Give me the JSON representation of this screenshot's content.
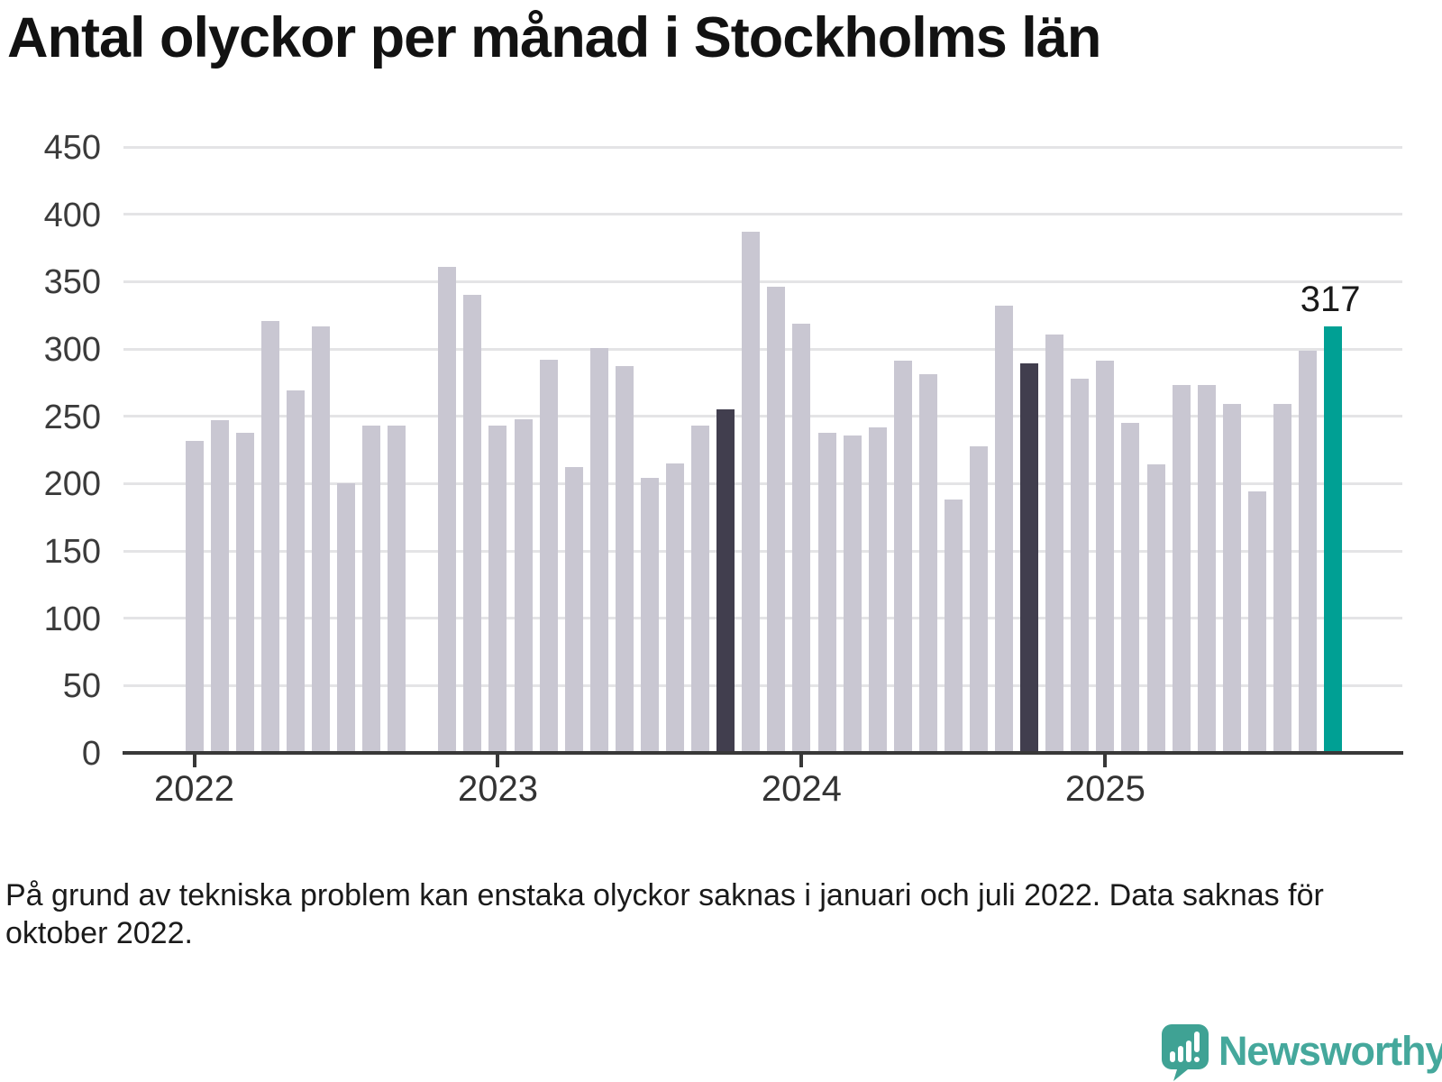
{
  "chart_data": {
    "type": "bar",
    "title": "Antal olyckor per månad i Stockholms län",
    "xlabel": "",
    "ylabel": "",
    "ylim": [
      0,
      450
    ],
    "grid": true,
    "legend": null,
    "yticks": [
      0,
      50,
      100,
      150,
      200,
      250,
      300,
      350,
      400,
      450
    ],
    "xticks": [
      {
        "label": "2022",
        "slot": 0
      },
      {
        "label": "2023",
        "slot": 12
      },
      {
        "label": "2024",
        "slot": 24
      },
      {
        "label": "2025",
        "slot": 36
      }
    ],
    "colors": {
      "default": "#c9c7d2",
      "dark": "#413e4e",
      "highlight": "#00a094"
    },
    "bars": [
      {
        "month": "2022-01",
        "value": 232,
        "color": "default"
      },
      {
        "month": "2022-02",
        "value": 247,
        "color": "default"
      },
      {
        "month": "2022-03",
        "value": 238,
        "color": "default"
      },
      {
        "month": "2022-04",
        "value": 321,
        "color": "default"
      },
      {
        "month": "2022-05",
        "value": 269,
        "color": "default"
      },
      {
        "month": "2022-06",
        "value": 317,
        "color": "default"
      },
      {
        "month": "2022-07",
        "value": 200,
        "color": "default"
      },
      {
        "month": "2022-08",
        "value": 243,
        "color": "default"
      },
      {
        "month": "2022-09",
        "value": 243,
        "color": "default"
      },
      {
        "month": "2022-10",
        "value": null,
        "color": "default"
      },
      {
        "month": "2022-11",
        "value": 361,
        "color": "default"
      },
      {
        "month": "2022-12",
        "value": 340,
        "color": "default"
      },
      {
        "month": "2023-01",
        "value": 243,
        "color": "default"
      },
      {
        "month": "2023-02",
        "value": 248,
        "color": "default"
      },
      {
        "month": "2023-03",
        "value": 292,
        "color": "default"
      },
      {
        "month": "2023-04",
        "value": 212,
        "color": "default"
      },
      {
        "month": "2023-05",
        "value": 301,
        "color": "default"
      },
      {
        "month": "2023-06",
        "value": 287,
        "color": "default"
      },
      {
        "month": "2023-07",
        "value": 204,
        "color": "default"
      },
      {
        "month": "2023-08",
        "value": 215,
        "color": "default"
      },
      {
        "month": "2023-09",
        "value": 243,
        "color": "default"
      },
      {
        "month": "2023-10",
        "value": 255,
        "color": "dark"
      },
      {
        "month": "2023-11",
        "value": 387,
        "color": "default"
      },
      {
        "month": "2023-12",
        "value": 346,
        "color": "default"
      },
      {
        "month": "2024-01",
        "value": 319,
        "color": "default"
      },
      {
        "month": "2024-02",
        "value": 238,
        "color": "default"
      },
      {
        "month": "2024-03",
        "value": 236,
        "color": "default"
      },
      {
        "month": "2024-04",
        "value": 242,
        "color": "default"
      },
      {
        "month": "2024-05",
        "value": 291,
        "color": "default"
      },
      {
        "month": "2024-06",
        "value": 281,
        "color": "default"
      },
      {
        "month": "2024-07",
        "value": 188,
        "color": "default"
      },
      {
        "month": "2024-08",
        "value": 228,
        "color": "default"
      },
      {
        "month": "2024-09",
        "value": 332,
        "color": "default"
      },
      {
        "month": "2024-10",
        "value": 289,
        "color": "dark"
      },
      {
        "month": "2024-11",
        "value": 311,
        "color": "default"
      },
      {
        "month": "2024-12",
        "value": 278,
        "color": "default"
      },
      {
        "month": "2025-01",
        "value": 291,
        "color": "default"
      },
      {
        "month": "2025-02",
        "value": 245,
        "color": "default"
      },
      {
        "month": "2025-03",
        "value": 214,
        "color": "default"
      },
      {
        "month": "2025-04",
        "value": 273,
        "color": "default"
      },
      {
        "month": "2025-05",
        "value": 273,
        "color": "default"
      },
      {
        "month": "2025-06",
        "value": 259,
        "color": "default"
      },
      {
        "month": "2025-07",
        "value": 194,
        "color": "default"
      },
      {
        "month": "2025-08",
        "value": 259,
        "color": "default"
      },
      {
        "month": "2025-09",
        "value": 299,
        "color": "default"
      },
      {
        "month": "2025-10",
        "value": 317,
        "color": "highlight"
      }
    ],
    "annotation": {
      "text": "317",
      "bar_index": 45
    }
  },
  "note": {
    "lines": [
      "På grund av tekniska problem kan enstaka olyckor saknas i januari och juli 2022. Data saknas för",
      "oktober 2022."
    ]
  },
  "brand": {
    "name": "Newsworthy",
    "color": "#45a89c"
  }
}
